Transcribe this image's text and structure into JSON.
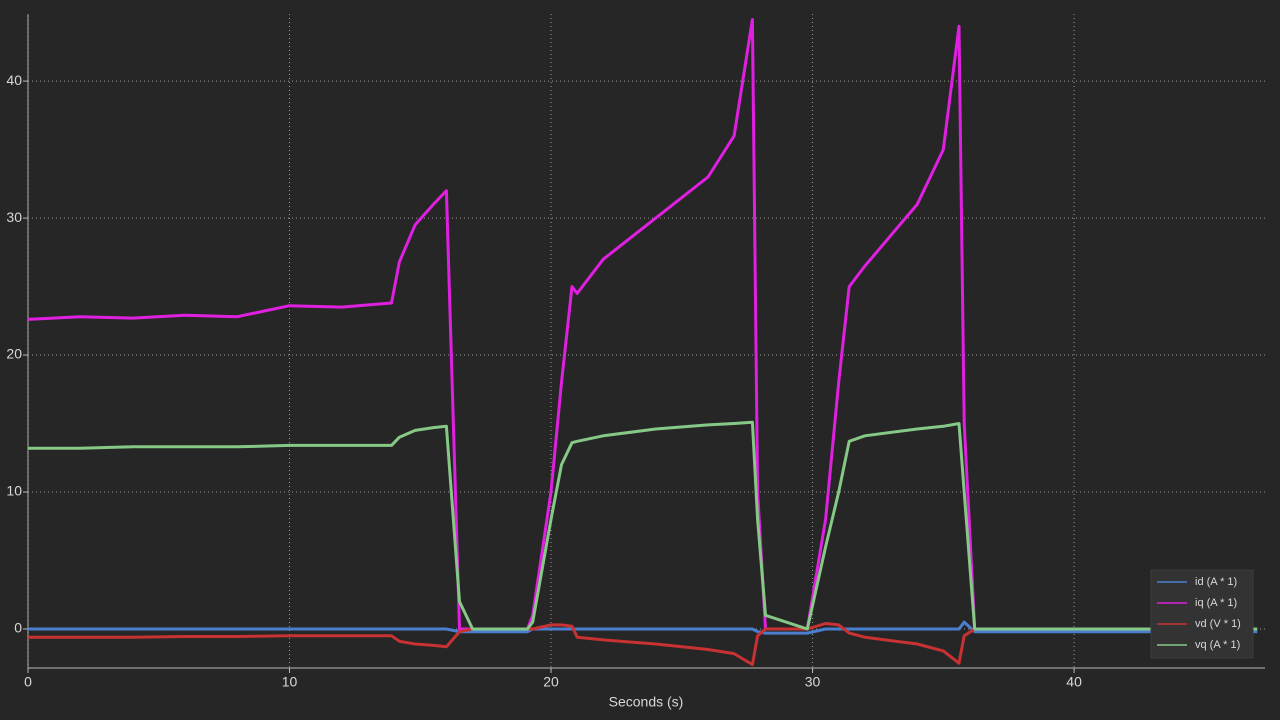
{
  "chart_data": {
    "type": "line",
    "x_label": "Seconds (s)",
    "x": [
      0,
      2,
      4,
      6,
      8,
      10,
      12,
      13.9,
      14.2,
      14.8,
      15.5,
      16,
      16.5,
      17,
      19.1,
      19.3,
      20,
      20.4,
      20.8,
      21,
      22,
      24,
      26,
      27,
      27.7,
      27.9,
      28.2,
      29.8,
      30.5,
      31,
      31.4,
      32,
      34,
      35,
      35.6,
      35.8,
      36.2,
      40,
      47
    ],
    "series": [
      {
        "name": "id (A * 1)",
        "color": "#4a7fd0",
        "values": [
          0,
          0,
          0,
          0,
          0,
          0,
          0,
          0,
          0,
          0,
          0,
          0,
          -0.2,
          -0.2,
          -0.2,
          0,
          0,
          0,
          0,
          0,
          0,
          0,
          0,
          0,
          0,
          -0.2,
          -0.3,
          -0.3,
          0,
          0,
          0,
          0,
          0,
          0,
          0,
          0.5,
          -0.2,
          -0.2,
          -0.2
        ]
      },
      {
        "name": "iq (A * 1)",
        "color": "#e020e0",
        "values": [
          22.6,
          22.8,
          22.7,
          22.9,
          22.8,
          23.6,
          23.5,
          23.8,
          26.8,
          29.5,
          31,
          32,
          0,
          0,
          0,
          1,
          10,
          18,
          25,
          24.5,
          27,
          30,
          33,
          36,
          44.5,
          10,
          0,
          0,
          8,
          18,
          25,
          26.5,
          31,
          35,
          44,
          15,
          0,
          0,
          0
        ]
      },
      {
        "name": "vd (V * 1)",
        "color": "#c83232",
        "values": [
          -0.6,
          -0.6,
          -0.6,
          -0.55,
          -0.55,
          -0.5,
          -0.5,
          -0.5,
          -0.9,
          -1.1,
          -1.2,
          -1.3,
          -0.2,
          0,
          0,
          0,
          0.3,
          0.3,
          0.2,
          -0.6,
          -0.8,
          -1.1,
          -1.5,
          -1.8,
          -2.6,
          -0.5,
          0,
          0,
          0.4,
          0.3,
          -0.3,
          -0.6,
          -1.1,
          -1.6,
          -2.5,
          -0.5,
          0,
          0,
          0
        ]
      },
      {
        "name": "vq (A * 1)",
        "color": "#86c886",
        "values": [
          13.2,
          13.2,
          13.3,
          13.3,
          13.3,
          13.4,
          13.4,
          13.4,
          14,
          14.5,
          14.7,
          14.8,
          2,
          0,
          0,
          0.5,
          8,
          12,
          13.6,
          13.7,
          14.1,
          14.6,
          14.9,
          15,
          15.1,
          8,
          1,
          0,
          6,
          10,
          13.7,
          14.1,
          14.6,
          14.8,
          15,
          10,
          0,
          0,
          0
        ]
      }
    ],
    "xlim": [
      0,
      47.3
    ],
    "ylim": [
      -2.85,
      44.9
    ],
    "xticks": [
      0,
      10,
      20,
      30,
      40
    ],
    "yticks": [
      0,
      10,
      20,
      30,
      40
    ],
    "grid": true,
    "legend": "lower right"
  }
}
